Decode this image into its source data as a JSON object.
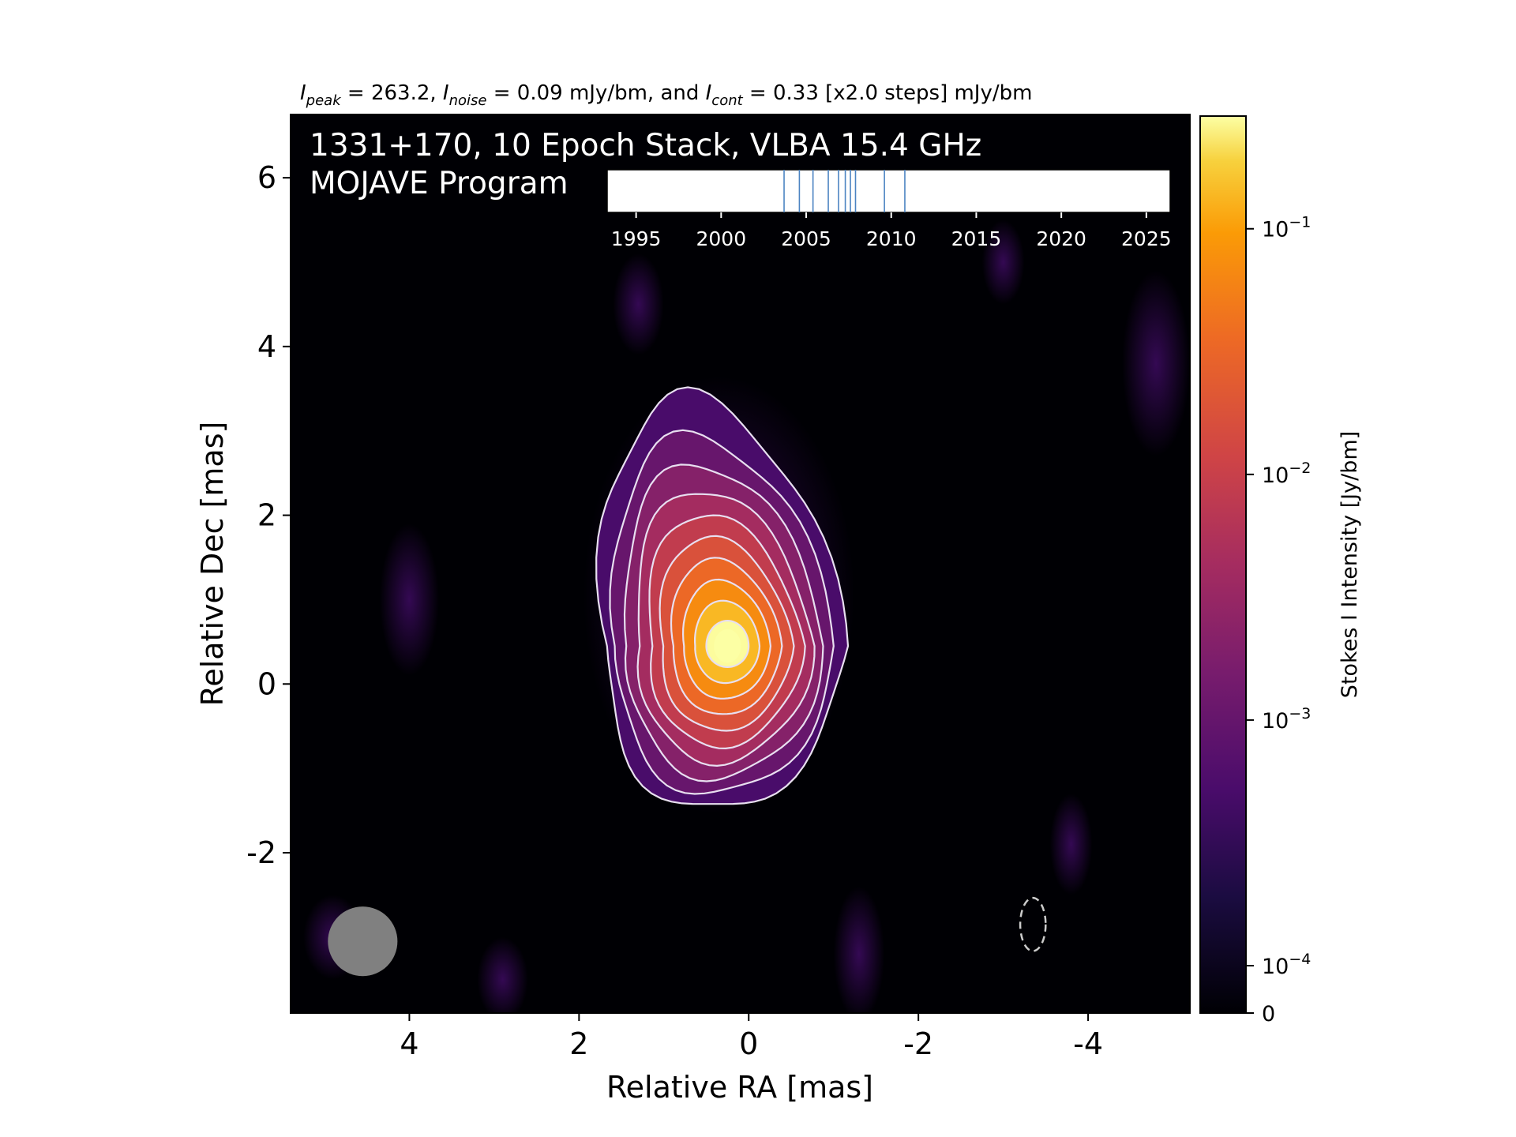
{
  "header": {
    "peak_label": "I",
    "peak_sub": "peak",
    "peak_value": " = 263.2, ",
    "noise_label": "I",
    "noise_sub": "noise",
    "noise_value": " = 0.09 mJy/bm, and ",
    "cont_label": "I",
    "cont_sub": "cont",
    "cont_value": " = 0.33 [x2.0 steps] mJy/bm"
  },
  "overlay": {
    "title_line1": "1331+170, 10 Epoch Stack, VLBA 15.4 GHz",
    "title_line2": "MOJAVE Program"
  },
  "chart_data": {
    "type": "heatmap",
    "xlabel": "Relative RA [mas]",
    "ylabel": "Relative Dec [mas]",
    "xlim": [
      5.4,
      -5.2
    ],
    "ylim": [
      -3.9,
      6.75
    ],
    "x_ticks": [
      4,
      2,
      0,
      -2,
      -4
    ],
    "x_tick_labels": [
      "4",
      "2",
      "0",
      "-2",
      "-4"
    ],
    "y_ticks": [
      -2,
      0,
      2,
      4,
      6
    ],
    "y_tick_labels": [
      "-2",
      "0",
      "2",
      "4",
      "6"
    ],
    "colormap": "inferno",
    "colorbar": {
      "label": "Stokes I Intensity [Jy/bm]",
      "scale": "log",
      "ticks": [
        0,
        0.0001,
        0.001,
        0.01,
        0.1
      ],
      "tick_labels": [
        {
          "base": "0",
          "exp": ""
        },
        {
          "base": "10",
          "exp": "−4"
        },
        {
          "base": "10",
          "exp": "−3"
        },
        {
          "base": "10",
          "exp": "−2"
        },
        {
          "base": "10",
          "exp": "−1"
        }
      ],
      "max": 0.2632
    },
    "peak_position": [
      0.25,
      0.45
    ],
    "contour_base_mJy": 0.33,
    "contour_step": 2.0,
    "contour_count": 10,
    "beam": {
      "ra": 4.55,
      "dec": -3.05,
      "major_mas": 0.82,
      "minor_mas": 0.82
    },
    "dashed_ellipse": {
      "ra": -3.35,
      "dec": -2.85,
      "major_mas": 0.63,
      "minor_mas": 0.3
    },
    "timeline": {
      "xlim": [
        1993.3,
        2026.4
      ],
      "ticks": [
        1995,
        2000,
        2005,
        2010,
        2015,
        2020,
        2025
      ],
      "tick_labels": [
        "1995",
        "2000",
        "2005",
        "2010",
        "2015",
        "2020",
        "2025"
      ],
      "epochs": [
        2003.7,
        2004.6,
        2005.4,
        2006.3,
        2006.9,
        2007.3,
        2007.6,
        2007.9,
        2009.6,
        2010.8
      ]
    }
  }
}
